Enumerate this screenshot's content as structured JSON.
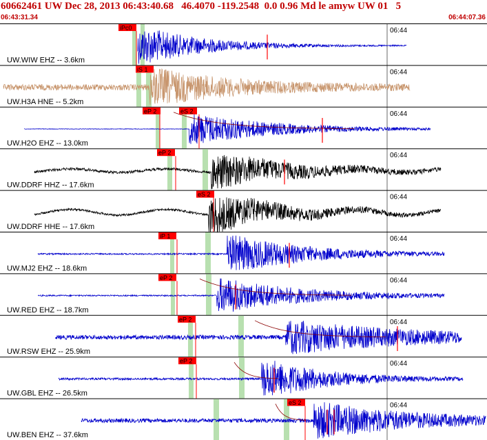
{
  "header": {
    "title": "60662461 UW Dec 28, 2013 06:43:40.68   46.4070 -119.2548  0.0 0.96 Md le amyw UW 01   5",
    "start_time": "06:43:31.34",
    "end_time": "06:44:07.36"
  },
  "minute_label": "06:44",
  "colors": {
    "header": "#c00000",
    "pick": "#ff0000",
    "window": "#b8e0b0",
    "theory": "#8b0000"
  },
  "traces": [
    {
      "label": "UW.WIW EHZ -- 3.6km",
      "color": "#0000cc",
      "onset": 0.1,
      "sig_start": 200,
      "sig_end": 590,
      "peak": 215,
      "amp": 26,
      "noise": 0.05,
      "decay": 90,
      "picks": [
        {
          "text": "iPc0",
          "x": 172,
          "pos": "top",
          "line": 198
        }
      ],
      "windows": [
        [
          192,
          198
        ],
        [
          204,
          210
        ]
      ],
      "extra_red": [
        388
      ]
    },
    {
      "label": "UW.H3A HNE -- 5.2km",
      "color": "#c8966e",
      "onset": 0.1,
      "sig_start": 5,
      "sig_end": 595,
      "peak": 232,
      "amp": 24,
      "noise": 0.45,
      "decay": 110,
      "picks": [
        {
          "text": "iS 1",
          "x": 197,
          "pos": "top",
          "line": null
        }
      ],
      "windows": [
        [
          198,
          205
        ],
        [
          212,
          220
        ]
      ],
      "extra_red": []
    },
    {
      "label": "UW.H2O EHZ -- 13.0km",
      "color": "#0000cc",
      "onset": 0.1,
      "sig_start": 35,
      "sig_end": 625,
      "peak": 290,
      "amp": 22,
      "noise": 0.04,
      "decay": 120,
      "picks": [
        {
          "text": "eP 2",
          "x": 207,
          "pos": "top",
          "line": 232
        },
        {
          "text": "eS 2",
          "x": 260,
          "pos": "top",
          "line": 289
        }
      ],
      "windows": [
        [
          226,
          232
        ],
        [
          264,
          271
        ]
      ],
      "extra_red": [
        468
      ],
      "curve": [
        252,
        515
      ]
    },
    {
      "label": "UW.DDRF HHZ -- 17.6km",
      "color": "#000000",
      "onset": 0.15,
      "sig_start": 50,
      "sig_end": 640,
      "peak": 322,
      "amp": 24,
      "noise": 0.2,
      "decay": 110,
      "picks": [
        {
          "text": "eP 2",
          "x": 228,
          "pos": "top",
          "line": 255
        }
      ],
      "windows": [
        [
          243,
          250
        ],
        [
          294,
          302
        ]
      ],
      "extra_red": [
        413
      ],
      "wave": 0.3
    },
    {
      "label": "UW.DDRF HHE -- 17.6km",
      "color": "#000000",
      "onset": 0.15,
      "sig_start": 50,
      "sig_end": 640,
      "peak": 318,
      "amp": 26,
      "noise": 0.15,
      "decay": 100,
      "picks": [
        {
          "text": "eS 2",
          "x": 285,
          "pos": "top",
          "line": 310
        }
      ],
      "windows": [],
      "extra_red": [],
      "wave": 0.45
    },
    {
      "label": "UW.MJ2 EHZ -- 18.6km",
      "color": "#0000cc",
      "onset": 0.1,
      "sig_start": 55,
      "sig_end": 645,
      "peak": 345,
      "amp": 26,
      "noise": 0.1,
      "decay": 110,
      "picks": [
        {
          "text": "iP 1",
          "x": 230,
          "pos": "top",
          "line": 257
        }
      ],
      "windows": [
        [
          247,
          253
        ],
        [
          298,
          306
        ]
      ],
      "extra_red": [
        420
      ]
    },
    {
      "label": "UW.RED EHZ -- 18.7km",
      "color": "#0000cc",
      "onset": 0.1,
      "sig_start": 55,
      "sig_end": 645,
      "peak": 330,
      "amp": 24,
      "noise": 0.1,
      "decay": 120,
      "picks": [
        {
          "text": "eP 2",
          "x": 230,
          "pos": "top",
          "line": 257
        }
      ],
      "windows": [
        [
          248,
          254
        ],
        [
          299,
          307
        ]
      ],
      "extra_red": [
        342
      ],
      "curve": [
        290,
        510
      ]
    },
    {
      "label": "UW.RSW EHZ -- 25.9km",
      "color": "#0000cc",
      "onset": 0.15,
      "sig_start": 80,
      "sig_end": 670,
      "peak": 430,
      "amp": 22,
      "noise": 0.35,
      "decay": 180,
      "picks": [
        {
          "text": "eP 2",
          "x": 258,
          "pos": "top",
          "line": 284
        }
      ],
      "windows": [
        [
          273,
          280
        ],
        [
          346,
          354
        ]
      ],
      "extra_red": [
        577
      ],
      "curve": [
        370,
        560
      ]
    },
    {
      "label": "UW.GBL EHZ -- 26.5km",
      "color": "#0000cc",
      "onset": 0.15,
      "sig_start": 85,
      "sig_end": 672,
      "peak": 395,
      "amp": 26,
      "noise": 0.15,
      "decay": 90,
      "picks": [
        {
          "text": "eP 2",
          "x": 259,
          "pos": "top",
          "line": 285
        }
      ],
      "windows": [
        [
          274,
          281
        ],
        [
          347,
          355
        ]
      ],
      "extra_red": [
        398
      ],
      "curve": [
        340,
        405
      ]
    },
    {
      "label": "UW.BEN EHZ -- 37.6km",
      "color": "#0000cc",
      "onset": 0.2,
      "sig_start": 118,
      "sig_end": 705,
      "peak": 470,
      "amp": 24,
      "noise": 0.3,
      "decay": 140,
      "picks": [
        {
          "text": "eS 2",
          "x": 417,
          "pos": "top",
          "line": 443
        }
      ],
      "windows": [
        [
          310,
          318
        ],
        [
          412,
          420
        ]
      ],
      "extra_red": [
        475,
        485
      ],
      "curve": [
        400,
        445
      ]
    }
  ]
}
